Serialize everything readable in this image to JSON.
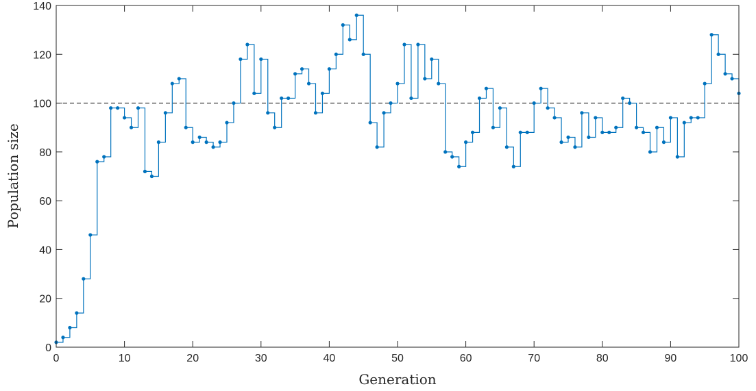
{
  "chart_data": {
    "type": "line",
    "style": "stairs-with-markers",
    "title": "",
    "xlabel": "Generation",
    "ylabel": "Population size",
    "xlim": [
      0,
      100
    ],
    "ylim": [
      0,
      140
    ],
    "xticks": [
      0,
      10,
      20,
      30,
      40,
      50,
      60,
      70,
      80,
      90,
      100
    ],
    "yticks": [
      0,
      20,
      40,
      60,
      80,
      100,
      120,
      140
    ],
    "grid": false,
    "reference_line": {
      "y": 100,
      "style": "dashed",
      "color": "#000000"
    },
    "series": [
      {
        "color": "#0072BD",
        "x": [
          0,
          1,
          2,
          3,
          4,
          5,
          6,
          7,
          8,
          9,
          10,
          11,
          12,
          13,
          14,
          15,
          16,
          17,
          18,
          19,
          20,
          21,
          22,
          23,
          24,
          25,
          26,
          27,
          28,
          29,
          30,
          31,
          32,
          33,
          34,
          35,
          36,
          37,
          38,
          39,
          40,
          41,
          42,
          43,
          44,
          45,
          46,
          47,
          48,
          49,
          50,
          51,
          52,
          53,
          54,
          55,
          56,
          57,
          58,
          59,
          60,
          61,
          62,
          63,
          64,
          65,
          66,
          67,
          68,
          69,
          70,
          71,
          72,
          73,
          74,
          75,
          76,
          77,
          78,
          79,
          80,
          81,
          82,
          83,
          84,
          85,
          86,
          87,
          88,
          89,
          90,
          91,
          92,
          93,
          94,
          95,
          96,
          97,
          98,
          99,
          100
        ],
        "values": [
          2,
          4,
          8,
          14,
          28,
          46,
          76,
          78,
          98,
          98,
          94,
          90,
          98,
          72,
          70,
          84,
          96,
          108,
          110,
          90,
          84,
          86,
          84,
          82,
          84,
          92,
          100,
          118,
          124,
          104,
          118,
          96,
          90,
          102,
          102,
          112,
          114,
          108,
          96,
          104,
          114,
          120,
          132,
          126,
          136,
          120,
          92,
          82,
          96,
          100,
          108,
          124,
          102,
          124,
          110,
          118,
          108,
          80,
          78,
          74,
          84,
          88,
          102,
          106,
          90,
          98,
          82,
          74,
          88,
          88,
          100,
          106,
          98,
          94,
          84,
          86,
          82,
          96,
          86,
          94,
          88,
          88,
          90,
          102,
          100,
          90,
          88,
          80,
          90,
          84,
          94,
          78,
          92,
          94,
          94,
          108,
          128,
          120,
          112,
          110,
          104
        ]
      }
    ]
  }
}
